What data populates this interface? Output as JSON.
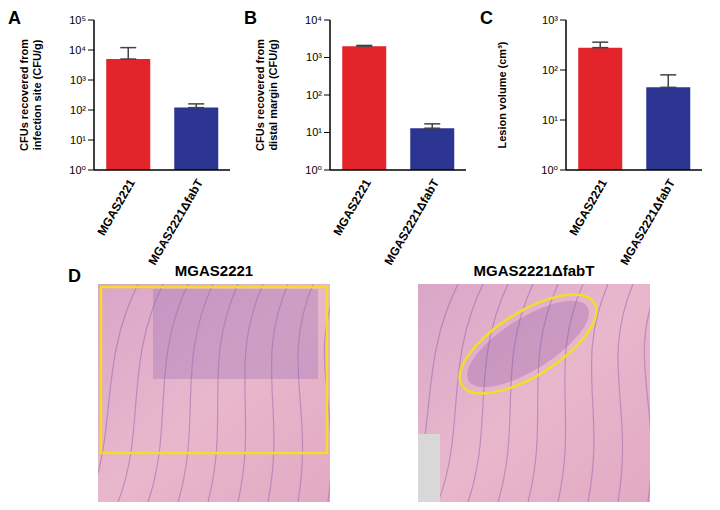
{
  "chart_data": [
    {
      "type": "bar",
      "annotations": [
        "A"
      ],
      "y_label": [
        "CFUs recovered from",
        "infection site (CFU/g)"
      ],
      "categories": [
        "MGAS2221",
        "MGAS2221ΔfabT"
      ],
      "values": [
        5000,
        120
      ],
      "errors": [
        7000,
        40
      ],
      "colors": [
        "#e3242b",
        "#2c3591"
      ],
      "log": "y",
      "ylim": [
        1,
        100000
      ],
      "yticks": [
        {
          "value": 1,
          "label": "10⁰"
        },
        {
          "value": 10,
          "label": "10¹"
        },
        {
          "value": 100,
          "label": "10²"
        },
        {
          "value": 1000,
          "label": "10³"
        },
        {
          "value": 10000,
          "label": "10⁴"
        },
        {
          "value": 100000,
          "label": "10⁵"
        }
      ]
    },
    {
      "type": "bar",
      "annotations": [
        "B"
      ],
      "y_label": [
        "CFUs recovered from",
        "distal margin (CFU/g)"
      ],
      "categories": [
        "MGAS2221",
        "MGAS2221ΔfabT"
      ],
      "values": [
        2000,
        13
      ],
      "errors": [
        100,
        4
      ],
      "colors": [
        "#e3242b",
        "#2c3591"
      ],
      "log": "y",
      "ylim": [
        1,
        10000
      ],
      "yticks": [
        {
          "value": 1,
          "label": "10⁰"
        },
        {
          "value": 10,
          "label": "10¹"
        },
        {
          "value": 100,
          "label": "10²"
        },
        {
          "value": 1000,
          "label": "10³"
        },
        {
          "value": 10000,
          "label": "10⁴"
        }
      ]
    },
    {
      "type": "bar",
      "annotations": [
        "C"
      ],
      "y_label": [
        "Lesion volume (cm³)"
      ],
      "categories": [
        "MGAS2221",
        "MGAS2221ΔfabT"
      ],
      "values": [
        280,
        45
      ],
      "errors": [
        80,
        35
      ],
      "colors": [
        "#e3242b",
        "#2c3591"
      ],
      "log": "y",
      "ylim": [
        1,
        1000
      ],
      "yticks": [
        {
          "value": 1,
          "label": "10⁰"
        },
        {
          "value": 10,
          "label": "10¹"
        },
        {
          "value": 100,
          "label": "10²"
        },
        {
          "value": 1000,
          "label": "10³"
        }
      ]
    }
  ],
  "images": {
    "annotations": [
      "D"
    ],
    "titles": [
      "MGAS2221",
      "MGAS2221ΔfabT"
    ]
  }
}
